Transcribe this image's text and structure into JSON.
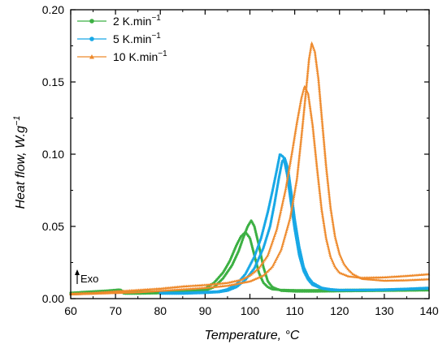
{
  "chart_data": {
    "type": "line",
    "xlabel": "Temperature, °C",
    "ylabel": "Heat flow, W.g",
    "ylabel_sup": "−1",
    "xlim": [
      60,
      140
    ],
    "ylim": [
      0,
      0.2
    ],
    "x_ticks": [
      60,
      70,
      80,
      90,
      100,
      110,
      120,
      130,
      140
    ],
    "x_tick_labels": [
      "60",
      "70",
      "80",
      "90",
      "100",
      "110",
      "120",
      "130",
      "140"
    ],
    "y_ticks": [
      0,
      0.05,
      0.1,
      0.15,
      0.2
    ],
    "y_tick_labels": [
      "0.00",
      "0.05",
      "0.10",
      "0.15",
      "0.20"
    ],
    "grid": false,
    "legend_position": "top-left",
    "annotation": "Exo",
    "series": [
      {
        "name_base": "2 K.min",
        "name_sup": "−1",
        "color": "#3cb043",
        "marker": "circle",
        "curves": [
          {
            "x": [
              60,
              65,
              68,
              70,
              71,
              72,
              75,
              80,
              85,
              88,
              90,
              92,
              94,
              95.5,
              97,
              98,
              99,
              100,
              101,
              102,
              103,
              104,
              105,
              107,
              110,
              115,
              120,
              130,
              140
            ],
            "y": [
              0.004,
              0.005,
              0.0055,
              0.006,
              0.0063,
              0.0045,
              0.0045,
              0.0048,
              0.005,
              0.0055,
              0.007,
              0.011,
              0.018,
              0.026,
              0.037,
              0.043,
              0.046,
              0.042,
              0.03,
              0.018,
              0.011,
              0.008,
              0.0065,
              0.006,
              0.0058,
              0.0058,
              0.006,
              0.0062,
              0.0065
            ]
          },
          {
            "x": [
              60,
              65,
              70,
              71,
              72,
              75,
              80,
              85,
              90,
              92,
              94,
              96,
              97.5,
              98.5,
              99.5,
              100.3,
              101,
              102,
              103,
              104,
              105,
              107,
              110,
              115,
              120,
              130,
              140
            ],
            "y": [
              0.003,
              0.004,
              0.0045,
              0.0048,
              0.0035,
              0.0035,
              0.0038,
              0.004,
              0.0055,
              0.008,
              0.014,
              0.023,
              0.033,
              0.042,
              0.05,
              0.054,
              0.05,
              0.037,
              0.022,
              0.012,
              0.008,
              0.0055,
              0.005,
              0.005,
              0.0052,
              0.0055,
              0.0058
            ]
          }
        ]
      },
      {
        "name_base": "5 K.min",
        "name_sup": "−1",
        "color": "#18a8e6",
        "marker": "circle",
        "curves": [
          {
            "x": [
              80,
              85,
              90,
              93,
              95,
              97,
              99,
              101,
              102.5,
              104,
              105,
              106,
              106.7,
              107.5,
              108.3,
              109,
              110,
              111,
              112,
              113,
              114,
              116,
              118,
              120,
              125,
              130,
              135,
              140
            ],
            "y": [
              0.004,
              0.004,
              0.0045,
              0.005,
              0.0065,
              0.01,
              0.017,
              0.029,
              0.042,
              0.06,
              0.074,
              0.089,
              0.1,
              0.098,
              0.086,
              0.07,
              0.048,
              0.03,
              0.019,
              0.013,
              0.0095,
              0.007,
              0.006,
              0.0058,
              0.0058,
              0.006,
              0.0065,
              0.007
            ]
          },
          {
            "x": [
              80,
              85,
              90,
              93,
              95,
              97,
              99,
              101,
              103,
              104.5,
              105.5,
              106.5,
              107.2,
              107.8,
              108.5,
              109.3,
              110,
              111,
              112,
              113,
              114,
              116,
              118,
              120,
              125,
              130,
              135,
              140
            ],
            "y": [
              0.0035,
              0.0035,
              0.004,
              0.0045,
              0.0055,
              0.008,
              0.013,
              0.021,
              0.035,
              0.05,
              0.066,
              0.084,
              0.095,
              0.097,
              0.09,
              0.072,
              0.055,
              0.036,
              0.022,
              0.015,
              0.011,
              0.0075,
              0.0065,
              0.006,
              0.006,
              0.0063,
              0.0068,
              0.0075
            ]
          }
        ]
      },
      {
        "name_base": "10 K.min",
        "name_sup": "−1",
        "color": "#ee8a2c",
        "marker": "triangle",
        "curves": [
          {
            "x": [
              60,
              65,
              70,
              75,
              80,
              85,
              90,
              95,
              98,
              100,
              102,
              104,
              106,
              108,
              109.5,
              110.5,
              111.5,
              112.2,
              113,
              114,
              115,
              116,
              117,
              118,
              119,
              120,
              122,
              125,
              130,
              135,
              140
            ],
            "y": [
              0.0035,
              0.004,
              0.005,
              0.006,
              0.007,
              0.0085,
              0.0095,
              0.011,
              0.013,
              0.016,
              0.021,
              0.03,
              0.048,
              0.076,
              0.103,
              0.122,
              0.139,
              0.147,
              0.142,
              0.12,
              0.09,
              0.062,
              0.042,
              0.029,
              0.022,
              0.018,
              0.0155,
              0.0145,
              0.0148,
              0.0158,
              0.017
            ]
          },
          {
            "x": [
              60,
              65,
              70,
              75,
              80,
              85,
              90,
              95,
              100,
              103,
              105,
              107,
              109,
              110.5,
              111.5,
              112.5,
              113.2,
              113.8,
              114.5,
              115.3,
              116,
              117,
              118,
              119,
              120,
              121,
              122,
              123,
              125,
              130,
              135,
              140
            ],
            "y": [
              0.003,
              0.0035,
              0.004,
              0.0045,
              0.0055,
              0.0065,
              0.0075,
              0.009,
              0.012,
              0.016,
              0.022,
              0.034,
              0.056,
              0.083,
              0.112,
              0.143,
              0.166,
              0.177,
              0.171,
              0.152,
              0.127,
              0.092,
              0.063,
              0.043,
              0.031,
              0.024,
              0.02,
              0.017,
              0.0138,
              0.0125,
              0.0128,
              0.0135
            ]
          }
        ]
      }
    ]
  }
}
